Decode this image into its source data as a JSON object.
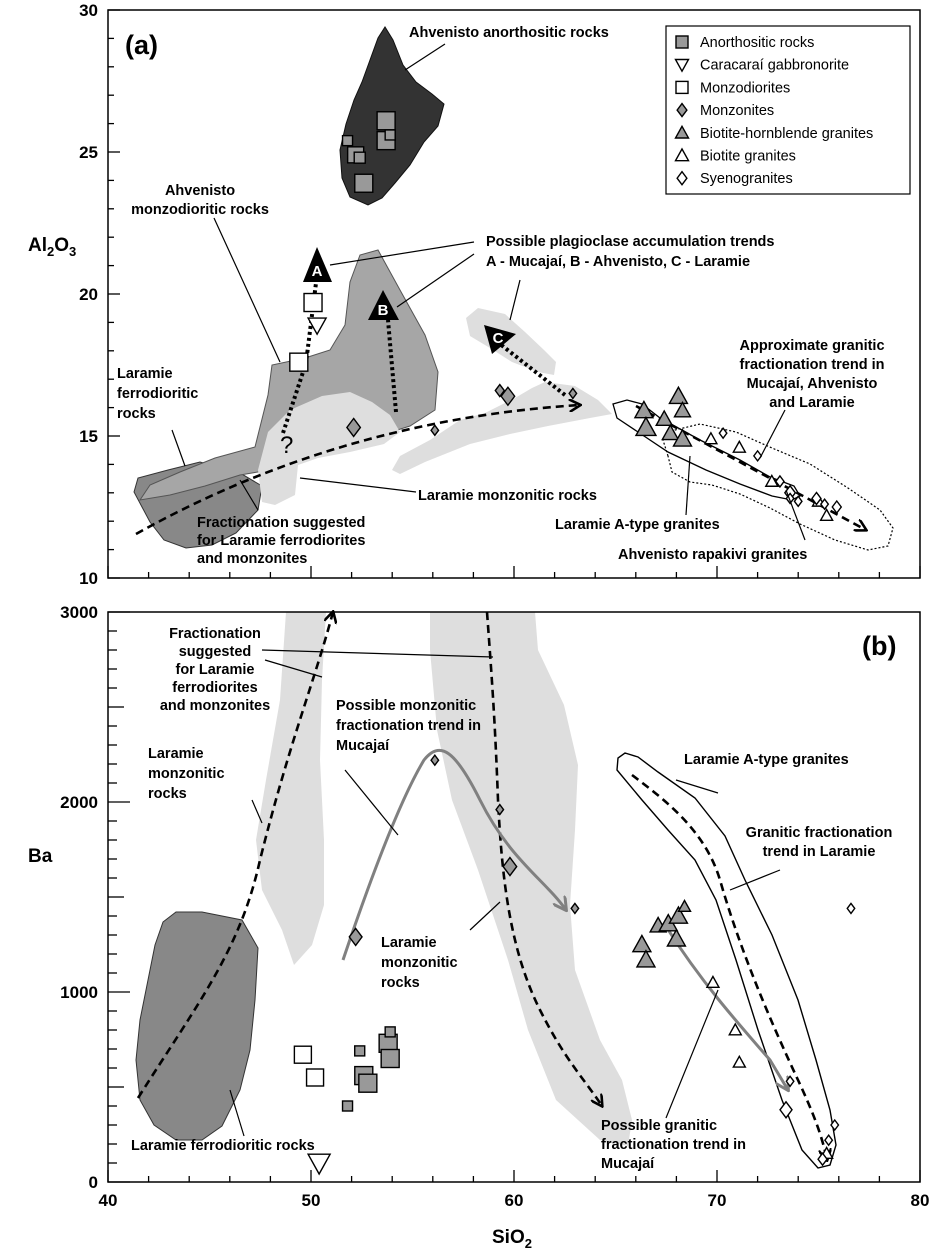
{
  "colors": {
    "anorthositic_field": "#333333",
    "monzodioritic_field": "#a6a6a6",
    "ferrodioritic_field": "#888888",
    "monzonitic_field": "#dedede",
    "anorthositic_symbol": "#999999",
    "monzonite_symbol": "#999999",
    "biotite_hornblende_symbol": "#999999",
    "mucajai_trend_line": "#808080"
  },
  "chart_data": [
    {
      "panel": "(a)",
      "type": "scatter",
      "xlabel": "SiO2",
      "xlabel_main": "SiO",
      "xlabel_sub": "2",
      "ylabel": "Al2O3",
      "ylabel_parts": [
        "Al",
        "2",
        "O",
        "3"
      ],
      "xlim": [
        40,
        80
      ],
      "ylim": [
        10,
        30
      ],
      "yticks": [
        "10",
        "15",
        "20",
        "25",
        "30"
      ],
      "grid": false,
      "legend_position": "top-right",
      "legend": [
        {
          "label": "Anorthositic rocks",
          "symbol": "square-filled"
        },
        {
          "label": "Caracaraí gabbronorite",
          "symbol": "triangle-down-open"
        },
        {
          "label": "Monzodiorites",
          "symbol": "square-open"
        },
        {
          "label": "Monzonites",
          "symbol": "diamond-filled"
        },
        {
          "label": "Biotite-hornblende granites",
          "symbol": "triangle-up-filled"
        },
        {
          "label": "Biotite granites",
          "symbol": "triangle-up-open"
        },
        {
          "label": "Syenogranites",
          "symbol": "diamond-open"
        }
      ],
      "series": [
        {
          "name": "Anorthositic rocks",
          "symbol": "square-filled",
          "points": [
            [
              51.8,
              25.4,
              10
            ],
            [
              52.2,
              24.9,
              16
            ],
            [
              52.4,
              24.8,
              11
            ],
            [
              52.6,
              23.9,
              18
            ],
            [
              53.7,
              26.1,
              18
            ],
            [
              53.7,
              25.4,
              18
            ],
            [
              53.9,
              25.6,
              10
            ]
          ]
        },
        {
          "name": "Caracaraí gabbronorite",
          "symbol": "triangle-down-open",
          "points": [
            [
              50.3,
              18.9,
              18
            ]
          ]
        },
        {
          "name": "Monzodiorites",
          "symbol": "square-open",
          "points": [
            [
              50.1,
              19.7,
              18
            ],
            [
              49.4,
              17.6,
              18
            ]
          ]
        },
        {
          "name": "Monzonites",
          "symbol": "diamond-filled",
          "points": [
            [
              52.1,
              15.3,
              18
            ],
            [
              59.3,
              16.6,
              12
            ],
            [
              59.7,
              16.4,
              18
            ],
            [
              56.1,
              15.2,
              10
            ],
            [
              62.9,
              16.5,
              10
            ]
          ]
        },
        {
          "name": "Biotite-hornblende granites",
          "symbol": "triangle-up-filled",
          "points": [
            [
              66.4,
              15.9,
              18
            ],
            [
              66.5,
              15.3,
              20
            ],
            [
              67.4,
              15.6,
              16
            ],
            [
              67.7,
              15.1,
              16
            ],
            [
              68.1,
              16.4,
              18
            ],
            [
              68.3,
              15.9,
              16
            ],
            [
              68.3,
              14.9,
              18
            ]
          ]
        },
        {
          "name": "Biotite granites",
          "symbol": "triangle-up-open",
          "points": [
            [
              69.7,
              14.9,
              12
            ],
            [
              71.1,
              14.6,
              12
            ],
            [
              72.7,
              13.4,
              12
            ],
            [
              75.0,
              12.7,
              12
            ],
            [
              75.4,
              12.2,
              12
            ]
          ]
        },
        {
          "name": "Syenogranites",
          "symbol": "diamond-open",
          "points": [
            [
              70.3,
              15.1,
              10
            ],
            [
              72.0,
              14.3,
              10
            ],
            [
              73.1,
              13.4,
              11
            ],
            [
              73.6,
              13.0,
              14
            ],
            [
              73.6,
              12.8,
              10
            ],
            [
              74.0,
              12.7,
              10
            ],
            [
              74.9,
              12.8,
              12
            ],
            [
              75.3,
              12.6,
              10
            ],
            [
              75.9,
              12.5,
              12
            ]
          ]
        }
      ],
      "fields": {
        "ahvenisto_anorthositic": "Ahvenisto anorthositic rocks",
        "ahvenisto_monzodioritic": "Ahvenisto monzodioritic rocks",
        "laramie_ferrodioritic": "Laramie ferrodioritic rocks",
        "laramie_monzonitic": "Laramie monzonitic rocks",
        "laramie_a_type": "Laramie A-type granites",
        "ahvenisto_rapakivi": "Ahvenisto rapakivi granites"
      },
      "trends": {
        "plagioclase": "Possible plagioclase accumulation trends A - Mucajaí, B - Ahvenisto, C - Laramie",
        "trend_A": "A",
        "trend_B": "B",
        "trend_C": "C",
        "fractionation": "Fractionation suggested for Laramie ferrodiorites and monzonites",
        "granitic": "Approximate granitic fractionation trend in Mucajaí, Ahvenisto and Laramie",
        "question": "?"
      }
    },
    {
      "panel": "(b)",
      "type": "scatter",
      "xlabel": "SiO2",
      "ylabel": "Ba",
      "xlim": [
        40,
        80
      ],
      "ylim": [
        0,
        3000
      ],
      "xticks": [
        "40",
        "50",
        "60",
        "70",
        "80"
      ],
      "yticks": [
        "0",
        "1000",
        "2000",
        "3000"
      ],
      "grid": false,
      "series": [
        {
          "name": "Anorthositic rocks",
          "symbol": "square-filled",
          "points": [
            [
              51.8,
              400,
              10
            ],
            [
              52.4,
              690,
              10
            ],
            [
              52.6,
              560,
              18
            ],
            [
              52.8,
              520,
              18
            ],
            [
              53.8,
              730,
              18
            ],
            [
              53.9,
              650,
              18
            ],
            [
              53.9,
              790,
              10
            ]
          ]
        },
        {
          "name": "Caracaraí gabbronorite",
          "symbol": "triangle-down-open",
          "points": [
            [
              50.4,
              100,
              22
            ]
          ]
        },
        {
          "name": "Monzodiorites",
          "symbol": "square-open",
          "points": [
            [
              49.6,
              670,
              17
            ],
            [
              50.2,
              550,
              17
            ]
          ]
        },
        {
          "name": "Monzonites",
          "symbol": "diamond-filled",
          "points": [
            [
              52.2,
              1290,
              17
            ],
            [
              56.1,
              2220,
              10
            ],
            [
              59.3,
              1960,
              10
            ],
            [
              59.8,
              1660,
              18
            ],
            [
              63.0,
              1440,
              10
            ]
          ]
        },
        {
          "name": "Biotite-hornblende granites",
          "symbol": "triangle-up-filled",
          "points": [
            [
              66.3,
              1250,
              18
            ],
            [
              66.5,
              1170,
              18
            ],
            [
              67.1,
              1350,
              16
            ],
            [
              67.6,
              1360,
              18
            ],
            [
              68.0,
              1280,
              18
            ],
            [
              68.1,
              1400,
              18
            ],
            [
              68.4,
              1450,
              12
            ]
          ]
        },
        {
          "name": "Biotite granites",
          "symbol": "triangle-up-open",
          "points": [
            [
              69.8,
              1050,
              12
            ],
            [
              70.9,
              800,
              12
            ],
            [
              71.1,
              630,
              12
            ],
            [
              75.4,
              150,
              12
            ]
          ]
        },
        {
          "name": "Syenogranites",
          "symbol": "diamond-open",
          "points": [
            [
              73.4,
              380,
              16
            ],
            [
              73.6,
              530,
              10
            ],
            [
              75.2,
              120,
              12
            ],
            [
              75.5,
              220,
              10
            ],
            [
              75.8,
              300,
              10
            ],
            [
              76.6,
              1440,
              10
            ]
          ]
        }
      ],
      "fields": {
        "laramie_monzonitic_left": "Laramie monzonitic rocks",
        "laramie_monzonitic_right": "Laramie monzonitic rocks",
        "laramie_ferrodioritic": "Laramie ferrodioritic rocks",
        "laramie_a_type": "Laramie A-type granites"
      },
      "trends": {
        "fractionation": "Fractionation suggested for Laramie ferrodiorites and monzonites",
        "monzonitic_mucajai": "Possible monzonitic fractionation trend in Mucajaí",
        "granitic_laramie": "Granitic fractionation trend in Laramie",
        "granitic_mucajai": "Possible granitic fractionation trend in Mucajaí"
      }
    }
  ]
}
